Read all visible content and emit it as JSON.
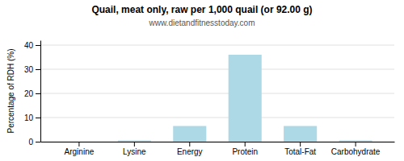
{
  "chart_data": {
    "type": "bar",
    "title": "Quail, meat only, raw per 1,000 quail (or 92.00 g)",
    "subtitle": "www.dietandfitnesstoday.com",
    "categories": [
      "Arginine",
      "Lysine",
      "Energy",
      "Protein",
      "Total-Fat",
      "Carbohydrate"
    ],
    "values": [
      0.0,
      0.5,
      6.5,
      36.0,
      6.5,
      0.5
    ],
    "color": "#add8e6",
    "ylabel": "Percentage of RDH (%)",
    "ylim": [
      0,
      42
    ],
    "yticks": [
      0,
      10,
      20,
      30,
      40
    ],
    "grid": true
  }
}
